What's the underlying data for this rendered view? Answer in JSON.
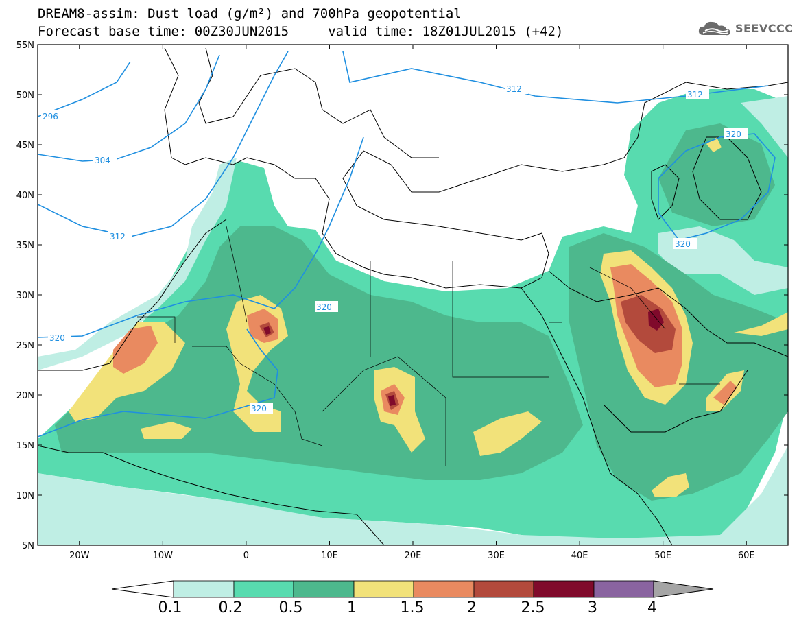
{
  "title": {
    "line1": "DREAM8-assim: Dust load (g/m²) and 700hPa geopotential",
    "line2": "Forecast base time: 00Z30JUN2015     valid time: 18Z01JUL2015 (+42)"
  },
  "logo": {
    "text": "SEEVCCC",
    "icon": "cloud-icon"
  },
  "map": {
    "lat_range": [
      5,
      55
    ],
    "lon_range": [
      -25,
      65
    ],
    "lat_ticks": [
      "5N",
      "10N",
      "15N",
      "20N",
      "25N",
      "30N",
      "35N",
      "40N",
      "45N",
      "50N",
      "55N"
    ],
    "lon_ticks": [
      "20W",
      "10W",
      "0",
      "10E",
      "20E",
      "30E",
      "40E",
      "50E",
      "60E"
    ],
    "contour_color": "#1f8fe0",
    "contour_labels": [
      "296",
      "304",
      "312",
      "312",
      "312",
      "320",
      "320",
      "320",
      "320",
      "320"
    ]
  },
  "colorbar": {
    "labels": [
      "0.1",
      "0.2",
      "0.5",
      "1",
      "1.5",
      "2",
      "2.5",
      "3",
      "4"
    ],
    "colors": [
      "#ffffff",
      "#bfeee4",
      "#58dbaf",
      "#4db88d",
      "#f2e27a",
      "#e98a60",
      "#b34a3c",
      "#800a2b",
      "#8a64a0",
      "#a5a5a5"
    ]
  }
}
